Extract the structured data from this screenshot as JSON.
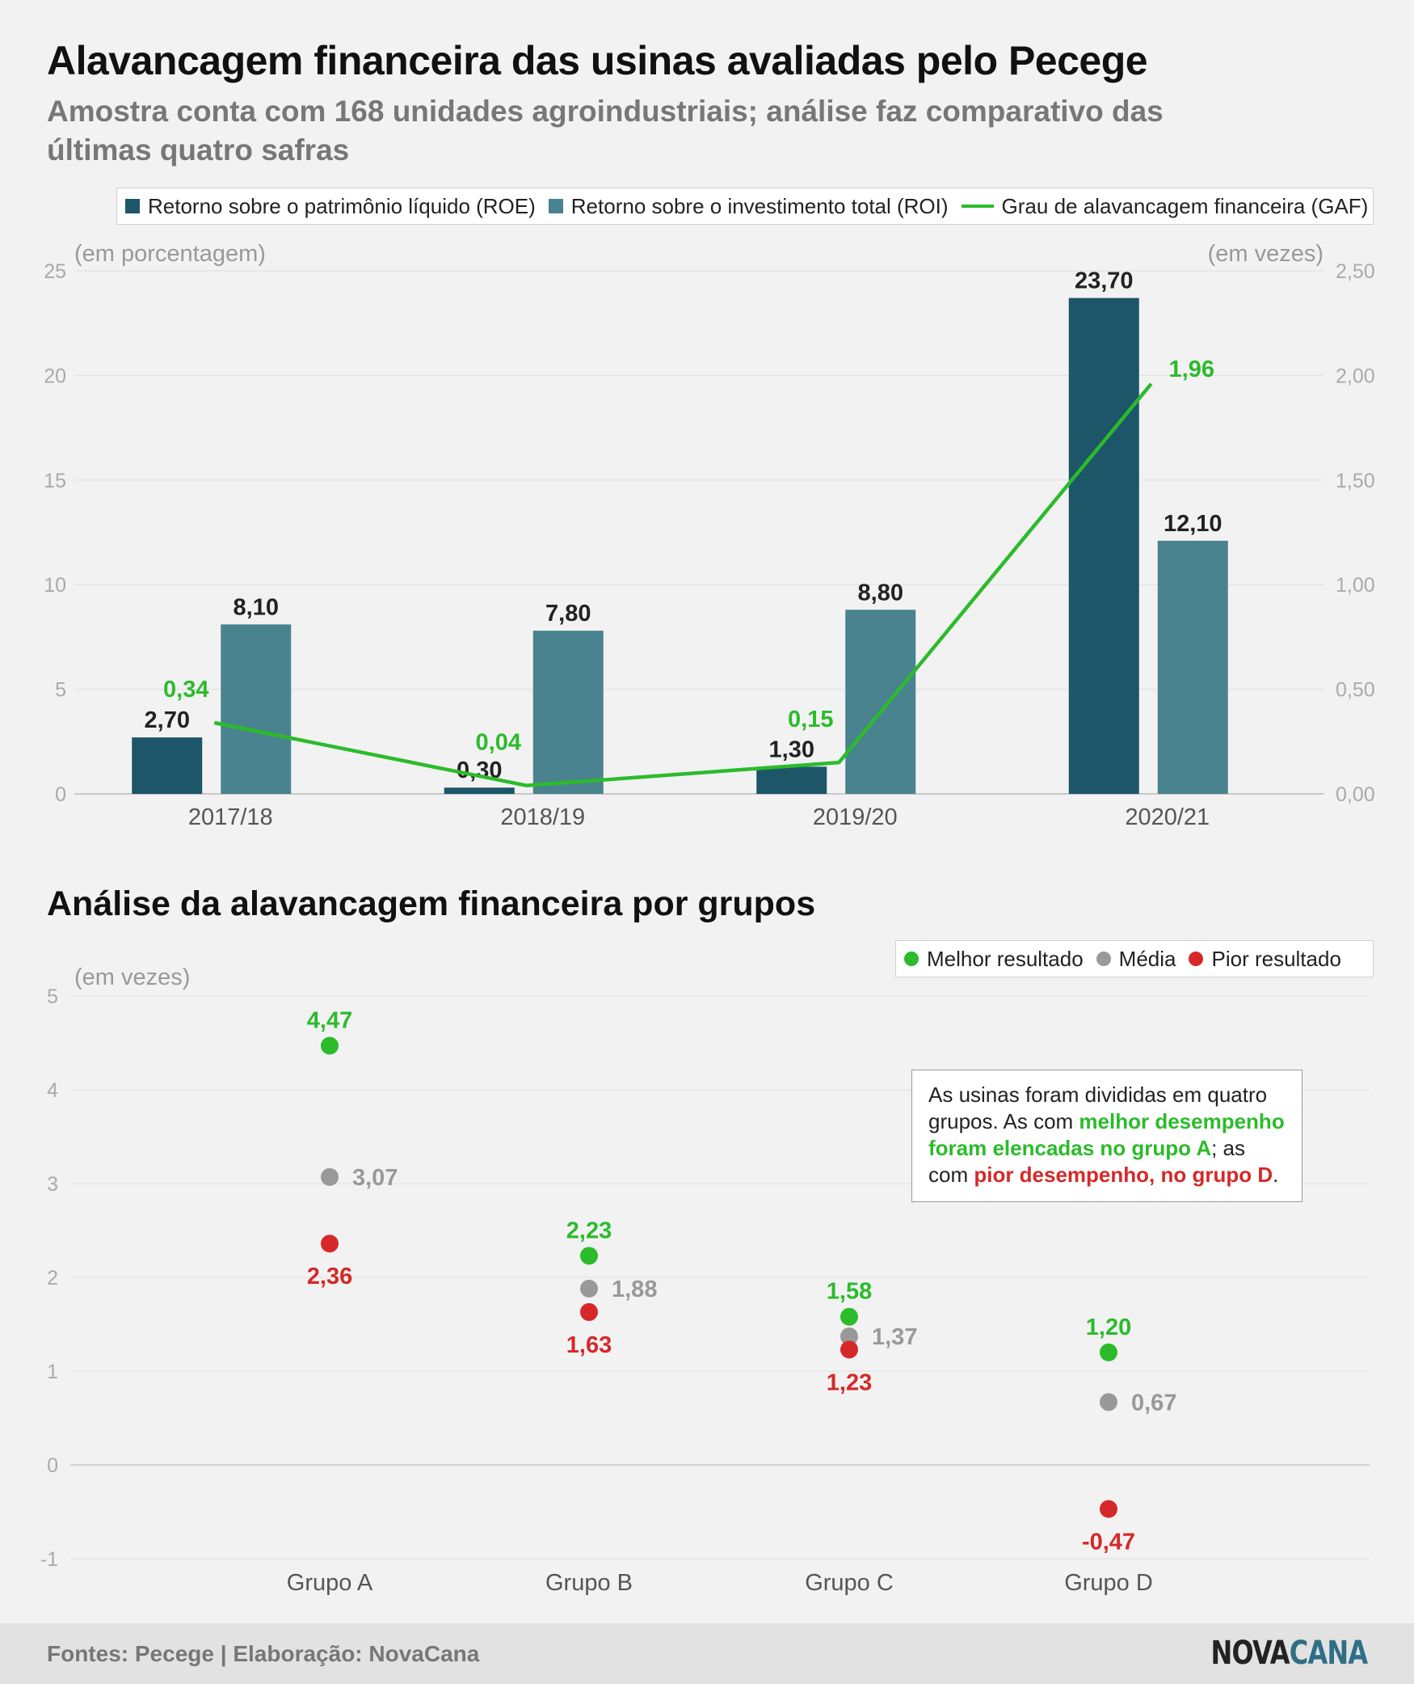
{
  "title": "Alavancagem financeira das usinas avaliadas pelo Pecege",
  "subtitle": "Amostra conta com 168 unidades agroindustriais; análise faz comparativo das últimas quatro safras",
  "section2_title": "Análise da alavancagem financeira por grupos",
  "note": {
    "part1": "As usinas foram divididas em quatro grupos. As com ",
    "green": "melhor desempenho foram elencadas no grupo A",
    "part2": "; as com ",
    "red": "pior desempenho, no grupo D",
    "part3": "."
  },
  "footer": {
    "source": "Fontes: Pecege | Elaboração: NovaCana",
    "logo_a": "NOVA",
    "logo_b": "CANA"
  },
  "colors": {
    "roe": "#1d5569",
    "roi": "#49838f",
    "gaf": "#2bbb2b",
    "best": "#2bbb2b",
    "avg": "#999999",
    "worst": "#d62828"
  },
  "chart_data": [
    {
      "type": "bar",
      "categories": [
        "2017/18",
        "2018/19",
        "2019/20",
        "2020/21"
      ],
      "series": [
        {
          "name": "Retorno sobre o patrimônio líquido (ROE)",
          "values": [
            2.7,
            0.3,
            1.3,
            23.7
          ],
          "labels": [
            "2,70",
            "0,30",
            "1,30",
            "23,70"
          ],
          "axis": "left"
        },
        {
          "name": "Retorno sobre o investimento total (ROI)",
          "values": [
            8.1,
            7.8,
            8.8,
            12.1
          ],
          "labels": [
            "8,10",
            "7,80",
            "8,80",
            "12,10"
          ],
          "axis": "left"
        },
        {
          "name": "Grau de alavancagem financeira (GAF)",
          "type": "line",
          "values": [
            0.34,
            0.04,
            0.15,
            1.96
          ],
          "labels": [
            "0,34",
            "0,04",
            "0,15",
            "1,96"
          ],
          "axis": "right"
        }
      ],
      "ylabel_left": "(em porcentagem)",
      "ylabel_right": "(em vezes)",
      "ylim_left": [
        0,
        25
      ],
      "ylim_right": [
        0,
        2.5
      ],
      "yticks_left": [
        "0",
        "5",
        "10",
        "15",
        "20",
        "25"
      ],
      "yticks_right": [
        "0,00",
        "0,50",
        "1,00",
        "1,50",
        "2,00",
        "2,50"
      ],
      "legend": "top",
      "grid": true
    },
    {
      "type": "scatter",
      "categories": [
        "Grupo A",
        "Grupo B",
        "Grupo C",
        "Grupo D"
      ],
      "series": [
        {
          "name": "Melhor resultado",
          "values": [
            4.47,
            2.23,
            1.58,
            1.2
          ],
          "labels": [
            "4,47",
            "2,23",
            "1,58",
            "1,20"
          ]
        },
        {
          "name": "Média",
          "values": [
            3.07,
            1.88,
            1.37,
            0.67
          ],
          "labels": [
            "3,07",
            "1,88",
            "1,37",
            "0,67"
          ]
        },
        {
          "name": "Pior resultado",
          "values": [
            2.36,
            1.63,
            1.23,
            -0.47
          ],
          "labels": [
            "2,36",
            "1,63",
            "1,23",
            "-0,47"
          ]
        }
      ],
      "ylabel": "(em vezes)",
      "ylim": [
        -1,
        5
      ],
      "yticks": [
        "-1",
        "0",
        "1",
        "2",
        "3",
        "4",
        "5"
      ],
      "legend": "top-right",
      "grid": true
    }
  ]
}
